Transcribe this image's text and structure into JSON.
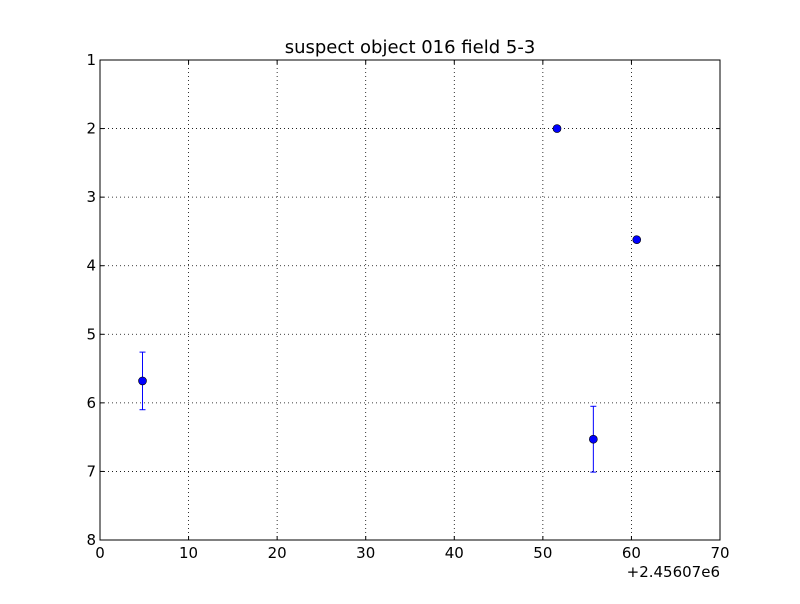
{
  "chart_data": {
    "type": "scatter",
    "title": "suspect object 016 field 5-3",
    "xlabel": "",
    "ylabel": "",
    "x_offset_label": "+2.45607e6",
    "xlim": [
      0,
      70
    ],
    "ylim": [
      8,
      1
    ],
    "y_inverted": true,
    "grid": true,
    "x_ticks": [
      0,
      10,
      20,
      30,
      40,
      50,
      60,
      70
    ],
    "y_ticks": [
      1,
      2,
      3,
      4,
      5,
      6,
      7,
      8
    ],
    "marker_color": "#0000ff",
    "series": [
      {
        "points": [
          {
            "x": 4.8,
            "y": 5.68,
            "yerr": 0.42
          },
          {
            "x": 51.6,
            "y": 2.0,
            "yerr": 0
          },
          {
            "x": 55.7,
            "y": 6.53,
            "yerr": 0.48
          },
          {
            "x": 60.6,
            "y": 3.62,
            "yerr": 0
          }
        ]
      }
    ]
  }
}
